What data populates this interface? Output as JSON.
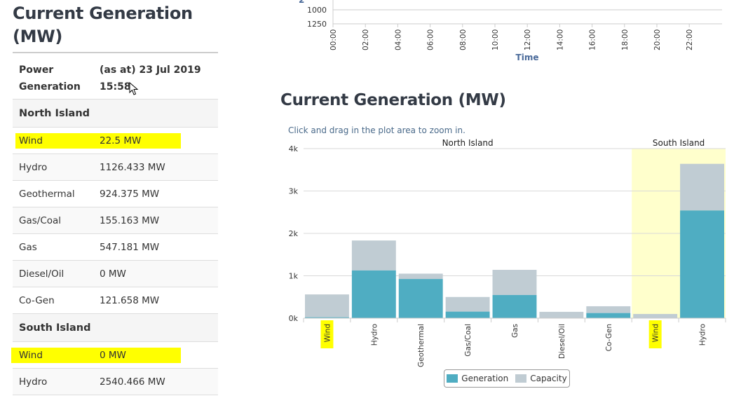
{
  "left": {
    "title": "Current Generation (MW)",
    "header": {
      "col1": "Power Generation",
      "col2": "(as at) 23 Jul 2019 15:58"
    },
    "rows": [
      {
        "type": "section",
        "label": "North Island"
      },
      {
        "label": "Wind",
        "value": "22.5 MW",
        "highlight": true
      },
      {
        "label": "Hydro",
        "value": "1126.433 MW"
      },
      {
        "label": "Geothermal",
        "value": "924.375 MW"
      },
      {
        "label": "Gas/Coal",
        "value": "155.163 MW"
      },
      {
        "label": "Gas",
        "value": "547.181 MW"
      },
      {
        "label": "Diesel/Oil",
        "value": "0 MW"
      },
      {
        "label": "Co-Gen",
        "value": "121.658 MW"
      },
      {
        "type": "section",
        "label": "South Island"
      },
      {
        "label": "Wind",
        "value": "0 MW",
        "highlight": true
      },
      {
        "label": "Hydro",
        "value": "2540.466 MW"
      }
    ]
  },
  "time_chart": {
    "y_ticks": [
      "1000",
      "1250"
    ],
    "x_ticks": [
      "00:00",
      "02:00",
      "04:00",
      "06:00",
      "08:00",
      "10:00",
      "12:00",
      "14:00",
      "16:00",
      "18:00",
      "20:00",
      "22:00"
    ],
    "xlabel": "Time",
    "partial_label": "2"
  },
  "right": {
    "title": "Current Generation (MW)",
    "zoom_hint": "Click and drag in the plot area to zoom in."
  },
  "chart_data": {
    "type": "bar",
    "stacked": true,
    "categories": [
      "Wind",
      "Hydro",
      "Geothermal",
      "Gas/Coal",
      "Gas",
      "Diesel/Oil",
      "Co-Gen",
      "Wind",
      "Hydro"
    ],
    "series": [
      {
        "name": "Generation",
        "color": "#4fadc2",
        "values": [
          22.5,
          1126.433,
          924.375,
          155.163,
          547.181,
          0,
          121.658,
          0,
          2540.466
        ]
      },
      {
        "name": "Capacity",
        "color": "#c0ccd3",
        "values": [
          538,
          706,
          126,
          345,
          593,
          150,
          160,
          100,
          1100
        ]
      }
    ],
    "y_ticks": [
      {
        "v": 0,
        "label": "0k"
      },
      {
        "v": 1000,
        "label": "1k"
      },
      {
        "v": 2000,
        "label": "2k"
      },
      {
        "v": 3000,
        "label": "3k"
      },
      {
        "v": 4000,
        "label": "4k"
      }
    ],
    "ylim": [
      0,
      4000
    ],
    "bands": [
      {
        "label": "North Island",
        "from": 0,
        "to": 6
      },
      {
        "label": "South Island",
        "from": 7,
        "to": 8,
        "shaded": true,
        "color": "#ffffcc"
      }
    ],
    "highlighted_categories": [
      0,
      7
    ],
    "legend": [
      "Generation",
      "Capacity"
    ]
  }
}
